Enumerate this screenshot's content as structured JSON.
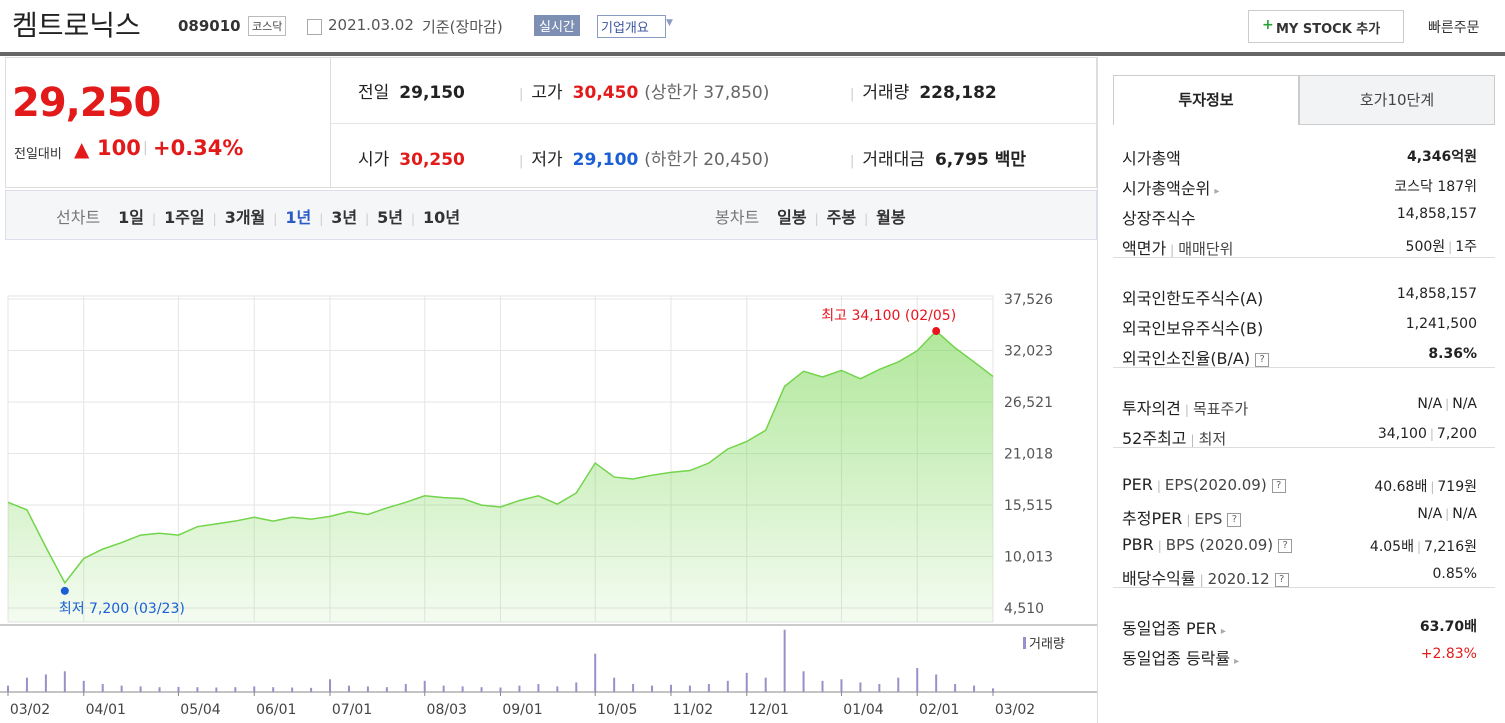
{
  "header": {
    "name": "켐트로닉스",
    "code": "089010",
    "market": "코스닥",
    "date": "2021.03.02",
    "basis": "기준(장마감)",
    "realtime": "실시간",
    "company": "기업개요",
    "mystock": "MY STOCK 추가",
    "quick": "빠른주문"
  },
  "quote": {
    "price": "29,250",
    "change_label": "전일대비",
    "change": "100",
    "change_pct": "+0.34%",
    "items": [
      {
        "label": "전일",
        "value": "29,150"
      },
      {
        "label": "고가",
        "value": "30,450",
        "extra": "(상한가 37,850)"
      },
      {
        "label": "거래량",
        "value": "228,182"
      },
      {
        "label": "시가",
        "value": "30,250"
      },
      {
        "label": "저가",
        "value": "29,100",
        "extra": "(하한가 20,450)"
      },
      {
        "label": "거래대금",
        "value": "6,795",
        "extra": "백만"
      }
    ]
  },
  "nav": {
    "line_label": "선차트",
    "periods": [
      "1일",
      "1주일",
      "3개월",
      "1년",
      "3년",
      "5년",
      "10년"
    ],
    "active": 3,
    "candle_label": "봉차트",
    "candles": [
      "일봉",
      "주봉",
      "월봉"
    ]
  },
  "chart_data": {
    "type": "area",
    "categories": [
      "03/02",
      null,
      null,
      null,
      "04/01",
      null,
      null,
      null,
      null,
      "05/04",
      null,
      null,
      null,
      "06/01",
      null,
      null,
      null,
      "07/01",
      null,
      null,
      null,
      null,
      "08/03",
      null,
      null,
      null,
      "09/01",
      null,
      null,
      null,
      null,
      "10/05",
      null,
      null,
      null,
      "11/02",
      null,
      null,
      null,
      "12/01",
      null,
      null,
      null,
      null,
      "01/04",
      null,
      null,
      null,
      "02/01",
      null,
      null,
      null,
      "03/02"
    ],
    "series": [
      {
        "color": "#72d44a",
        "values": [
          15800,
          15000,
          11000,
          7200,
          9800,
          10800,
          11500,
          12300,
          12500,
          12300,
          13200,
          13500,
          13800,
          14200,
          13800,
          14200,
          14000,
          14300,
          14800,
          14500,
          15200,
          15800,
          16500,
          16300,
          16200,
          15500,
          15300,
          16000,
          16500,
          15600,
          16800,
          20000,
          18500,
          18300,
          18700,
          19000,
          19200,
          20000,
          21500,
          22300,
          23500,
          28200,
          29800,
          29200,
          29900,
          29000,
          30000,
          30800,
          32000,
          34100,
          32300,
          30800,
          29250
        ]
      }
    ],
    "ylim": [
      3014,
      37846
    ],
    "yticks": [
      {
        "value": 37526,
        "label": "37,526"
      },
      {
        "value": 32023,
        "label": "32,023"
      },
      {
        "value": 26521,
        "label": "26,521"
      },
      {
        "value": 21018,
        "label": "21,018"
      },
      {
        "value": 15515,
        "label": "15,515"
      },
      {
        "value": 10013,
        "label": "10,013"
      },
      {
        "value": 4510,
        "label": "4,510"
      }
    ],
    "grid": true,
    "high_label": "최고 34,100 (02/05)",
    "low_label": "최저 7,200 (03/23)",
    "volume": {
      "name": "거래량",
      "color": "#9c8fc9",
      "ylim": [
        0,
        4200000
      ],
      "values": [
        400000,
        900000,
        1100000,
        1300000,
        700000,
        500000,
        400000,
        350000,
        300000,
        320000,
        300000,
        280000,
        300000,
        350000,
        300000,
        280000,
        260000,
        800000,
        400000,
        350000,
        300000,
        500000,
        700000,
        400000,
        350000,
        300000,
        280000,
        400000,
        500000,
        350000,
        600000,
        2400000,
        900000,
        500000,
        400000,
        450000,
        400000,
        500000,
        700000,
        1200000,
        900000,
        3900000,
        1300000,
        700000,
        800000,
        600000,
        500000,
        900000,
        1500000,
        1100000,
        500000,
        400000,
        228182
      ]
    }
  },
  "info": {
    "tabs": [
      "투자정보",
      "호가10단계"
    ],
    "groups": [
      [
        {
          "label": [
            "시가총액"
          ],
          "value": [
            "4,346억원"
          ],
          "strong": true
        },
        {
          "label": [
            "시가총액순위"
          ],
          "value": [
            "코스닥 187위"
          ],
          "link": true
        },
        {
          "label": [
            "상장주식수"
          ],
          "value": [
            "14,858,157"
          ]
        },
        {
          "label": [
            "액면가",
            "매매단위"
          ],
          "value": [
            "500원",
            "1주"
          ]
        }
      ],
      [
        {
          "label": [
            "외국인한도주식수(A)"
          ],
          "value": [
            "14,858,157"
          ]
        },
        {
          "label": [
            "외국인보유주식수(B)"
          ],
          "value": [
            "1,241,500"
          ]
        },
        {
          "label": [
            "외국인소진율(B/A)"
          ],
          "value": [
            "8.36%"
          ],
          "help": true,
          "strong": true
        }
      ],
      [
        {
          "label": [
            "투자의견",
            "목표주가"
          ],
          "value": [
            "N/A",
            "N/A"
          ]
        },
        {
          "label": [
            "52주최고",
            "최저"
          ],
          "value": [
            "34,100",
            "7,200"
          ]
        }
      ],
      [
        {
          "label": [
            "PER",
            "EPS(2020.09)"
          ],
          "value": [
            "40.68배",
            "719원"
          ],
          "help": true
        },
        {
          "label": [
            "추정PER",
            "EPS"
          ],
          "value": [
            "N/A",
            "N/A"
          ],
          "help": true
        },
        {
          "label": [
            "PBR",
            "BPS (2020.09)"
          ],
          "value": [
            "4.05배",
            "7,216원"
          ],
          "help": true
        },
        {
          "label": [
            "배당수익률",
            "2020.12"
          ],
          "value": [
            "0.85%"
          ],
          "help": true
        }
      ],
      [
        {
          "label": [
            "동일업종 PER"
          ],
          "value": [
            "63.70배"
          ],
          "link": true,
          "strong": true
        },
        {
          "label": [
            "동일업종 등락률"
          ],
          "value": [
            "+2.83%"
          ],
          "link": true,
          "red": true
        }
      ]
    ]
  }
}
